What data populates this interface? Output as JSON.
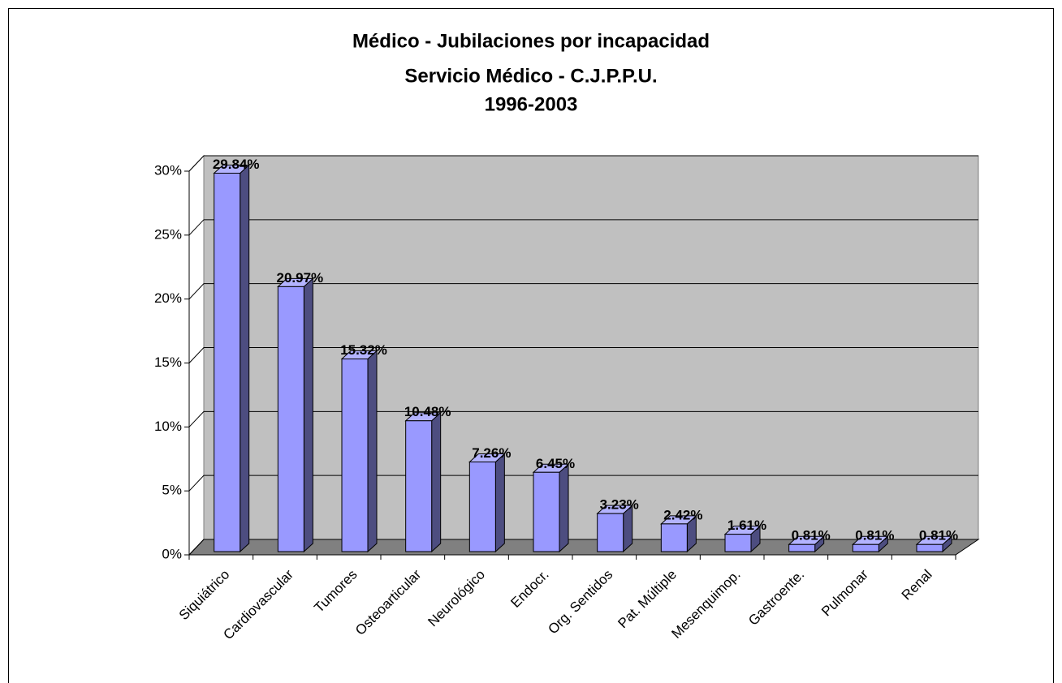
{
  "chart_data": {
    "type": "bar3d",
    "title": [
      "Médico - Jubilaciones por incapacidad",
      "Servicio Médico - C.J.P.P.U.",
      "1996-2003"
    ],
    "categories": [
      "Siquiátrico",
      "Cardiovascular",
      "Tumores",
      "Osteoarticular",
      "Neurológico",
      "Endocr.",
      "Org. Sentidos",
      "Pat. Múltiple",
      "Mesenquimop.",
      "Gastroente.",
      "Pulmonar",
      "Renal"
    ],
    "values": [
      29.84,
      20.97,
      15.32,
      10.48,
      7.26,
      6.45,
      3.23,
      2.42,
      1.61,
      0.81,
      0.81,
      0.81
    ],
    "value_labels": [
      "29.84%",
      "20.97%",
      "15.32%",
      "10.48%",
      "7.26%",
      "6.45%",
      "3.23%",
      "2.42%",
      "1.61%",
      "0.81%",
      "0.81%",
      "0.81%"
    ],
    "color": "#9999ff",
    "ylim": [
      0,
      30
    ],
    "yticks": [
      {
        "value": 0,
        "label": "0%"
      },
      {
        "value": 5,
        "label": "5%"
      },
      {
        "value": 10,
        "label": "10%"
      },
      {
        "value": 15,
        "label": "15%"
      },
      {
        "value": 20,
        "label": "20%"
      },
      {
        "value": 25,
        "label": "25%"
      },
      {
        "value": 30,
        "label": "30%"
      }
    ],
    "grid": true
  }
}
